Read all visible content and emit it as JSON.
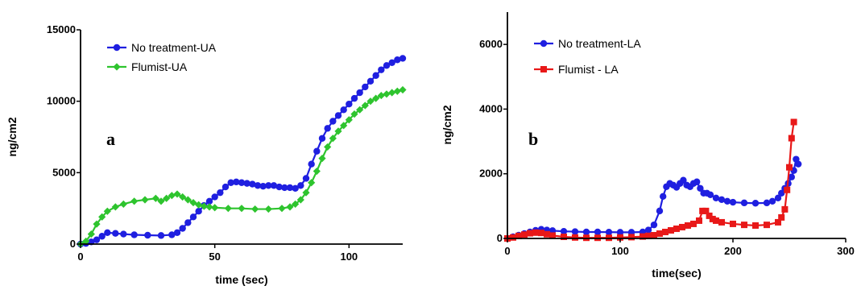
{
  "chart_data": [
    {
      "type": "line",
      "panel_label": "a",
      "xlabel": "time (sec)",
      "ylabel": "ng/cm2",
      "xlim": [
        0,
        120
      ],
      "ylim": [
        0,
        15000
      ],
      "xticks": [
        0,
        50,
        100
      ],
      "yticks": [
        0,
        5000,
        10000,
        15000
      ],
      "legend": "top-left",
      "series": [
        {
          "name": "No treatment-UA",
          "color": "#1f1fe0",
          "marker": "circle",
          "x": [
            0,
            2,
            4,
            6,
            8,
            10,
            13,
            16,
            20,
            25,
            30,
            34,
            36,
            38,
            40,
            42,
            44,
            46,
            48,
            50,
            52,
            54,
            56,
            58,
            60,
            62,
            64,
            66,
            68,
            70,
            72,
            74,
            76,
            78,
            80,
            82,
            84,
            86,
            88,
            90,
            92,
            94,
            96,
            98,
            100,
            102,
            104,
            106,
            108,
            110,
            112,
            114,
            116,
            118,
            120
          ],
          "values": [
            0,
            50,
            150,
            300,
            550,
            800,
            750,
            700,
            650,
            620,
            600,
            650,
            800,
            1100,
            1500,
            1900,
            2300,
            2700,
            3000,
            3300,
            3600,
            4000,
            4300,
            4350,
            4300,
            4250,
            4200,
            4100,
            4050,
            4100,
            4100,
            4000,
            3950,
            3950,
            3900,
            4100,
            4600,
            5600,
            6500,
            7400,
            8100,
            8600,
            9000,
            9400,
            9800,
            10200,
            10600,
            11000,
            11400,
            11800,
            12200,
            12500,
            12700,
            12900,
            13000
          ]
        },
        {
          "name": "Flumist-UA",
          "color": "#2ec42e",
          "marker": "diamond",
          "x": [
            0,
            2,
            4,
            6,
            8,
            10,
            13,
            16,
            20,
            24,
            28,
            30,
            32,
            34,
            36,
            38,
            40,
            42,
            44,
            46,
            48,
            50,
            55,
            60,
            65,
            70,
            75,
            78,
            80,
            82,
            84,
            86,
            88,
            90,
            92,
            94,
            96,
            98,
            100,
            102,
            104,
            106,
            108,
            110,
            112,
            114,
            116,
            118,
            120
          ],
          "values": [
            0,
            200,
            700,
            1400,
            1900,
            2300,
            2600,
            2800,
            3000,
            3100,
            3200,
            3000,
            3200,
            3400,
            3500,
            3300,
            3100,
            2900,
            2750,
            2650,
            2600,
            2550,
            2500,
            2500,
            2450,
            2450,
            2500,
            2600,
            2800,
            3100,
            3600,
            4300,
            5100,
            6000,
            6800,
            7400,
            7900,
            8300,
            8700,
            9100,
            9400,
            9700,
            10000,
            10200,
            10400,
            10500,
            10600,
            10700,
            10800
          ]
        }
      ]
    },
    {
      "type": "line",
      "panel_label": "b",
      "xlabel": "time(sec)",
      "ylabel": "ng/cm2",
      "xlim": [
        0,
        300
      ],
      "ylim": [
        0,
        7000
      ],
      "xticks": [
        0,
        100,
        200,
        300
      ],
      "yticks": [
        0,
        2000,
        4000,
        6000
      ],
      "legend": "top-left",
      "series": [
        {
          "name": "No treatment-LA",
          "color": "#1f1fe0",
          "marker": "circle",
          "x": [
            0,
            5,
            10,
            15,
            20,
            25,
            30,
            35,
            40,
            50,
            60,
            70,
            80,
            90,
            100,
            110,
            120,
            125,
            130,
            135,
            138,
            141,
            144,
            147,
            150,
            153,
            156,
            159,
            162,
            165,
            168,
            171,
            174,
            177,
            180,
            185,
            190,
            195,
            200,
            210,
            220,
            230,
            235,
            240,
            243,
            246,
            249,
            252,
            254,
            256,
            258
          ],
          "values": [
            0,
            50,
            100,
            150,
            200,
            250,
            280,
            260,
            240,
            220,
            210,
            200,
            200,
            195,
            190,
            190,
            200,
            260,
            420,
            850,
            1300,
            1600,
            1700,
            1650,
            1580,
            1700,
            1800,
            1650,
            1600,
            1700,
            1750,
            1550,
            1400,
            1400,
            1350,
            1250,
            1200,
            1150,
            1120,
            1100,
            1090,
            1100,
            1150,
            1250,
            1400,
            1550,
            1700,
            1900,
            2100,
            2450,
            2300
          ]
        },
        {
          "name": "Flumist - LA",
          "color": "#e81818",
          "marker": "square",
          "x": [
            0,
            5,
            10,
            15,
            20,
            25,
            30,
            35,
            40,
            50,
            60,
            70,
            80,
            90,
            100,
            110,
            120,
            125,
            130,
            135,
            140,
            145,
            150,
            155,
            160,
            165,
            170,
            173,
            176,
            179,
            182,
            185,
            190,
            200,
            210,
            220,
            230,
            240,
            243,
            246,
            248,
            250,
            252,
            254
          ],
          "values": [
            0,
            30,
            80,
            120,
            160,
            180,
            170,
            130,
            90,
            50,
            30,
            20,
            20,
            20,
            30,
            40,
            60,
            80,
            100,
            150,
            200,
            250,
            300,
            350,
            400,
            450,
            550,
            850,
            850,
            700,
            600,
            550,
            500,
            450,
            420,
            400,
            420,
            500,
            650,
            900,
            1500,
            2200,
            3100,
            3600
          ]
        }
      ]
    }
  ]
}
